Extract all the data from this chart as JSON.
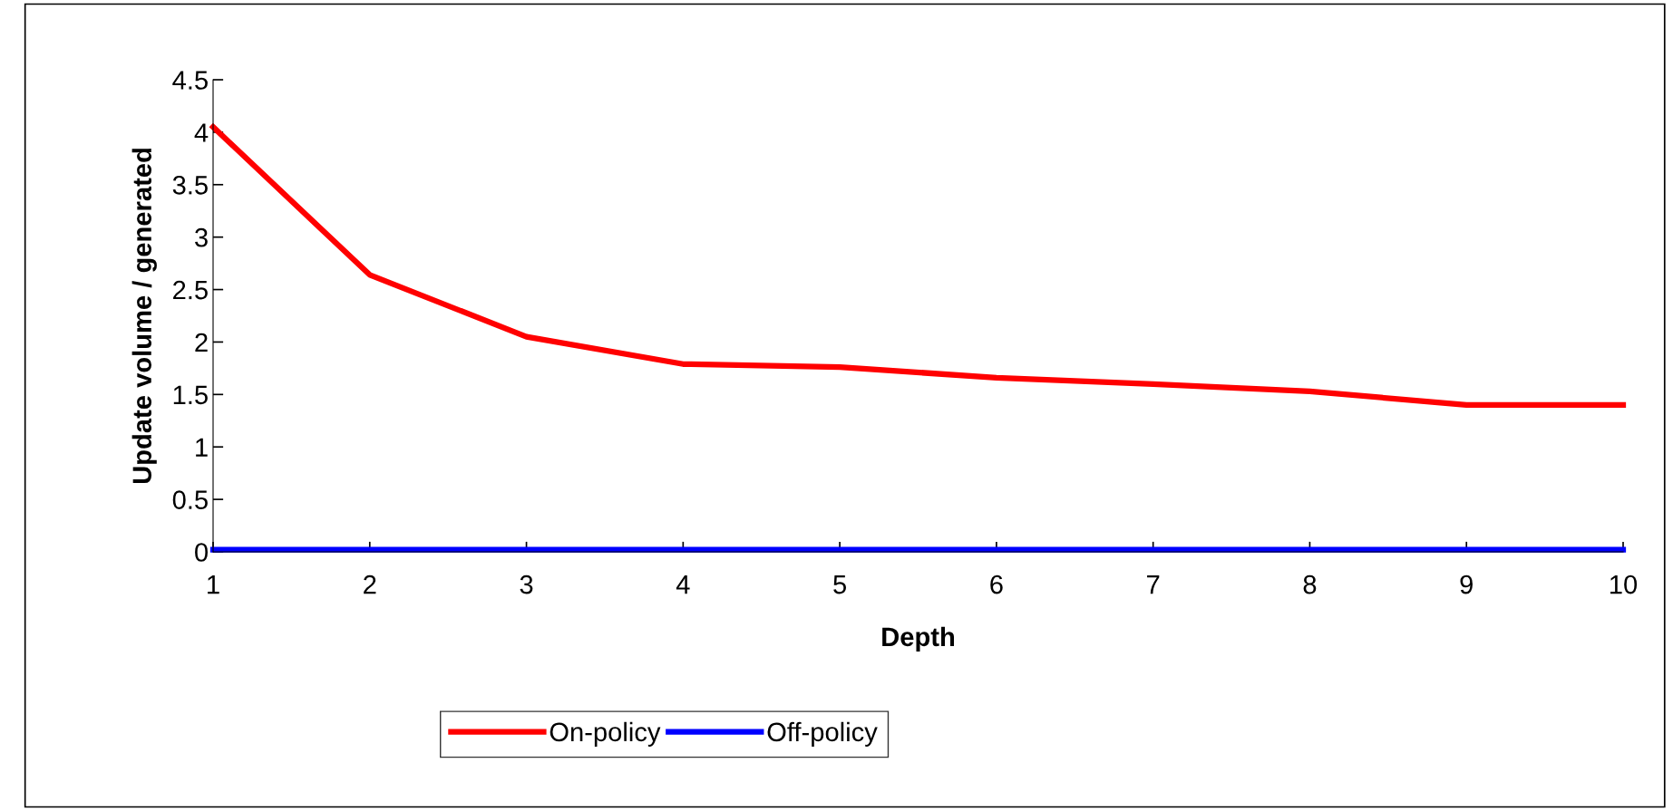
{
  "chart_data": {
    "type": "line",
    "xlabel": "Depth",
    "ylabel": "Update volume / generated",
    "categories": [
      "1",
      "2",
      "3",
      "4",
      "5",
      "6",
      "7",
      "8",
      "9",
      "10"
    ],
    "series": [
      {
        "name": "On-policy",
        "color": "#ff0000",
        "values": [
          4.05,
          2.64,
          2.05,
          1.79,
          1.76,
          1.66,
          1.6,
          1.53,
          1.4,
          1.4
        ]
      },
      {
        "name": "Off-policy",
        "color": "#0000ff",
        "values": [
          0.02,
          0.02,
          0.02,
          0.02,
          0.02,
          0.02,
          0.02,
          0.02,
          0.02,
          0.02
        ]
      }
    ],
    "ylim": [
      0,
      4.5
    ],
    "yticks": [
      0,
      0.5,
      1,
      1.5,
      2,
      2.5,
      3,
      3.5,
      4,
      4.5
    ],
    "grid": false,
    "legend": "bottom",
    "marker": "none",
    "line_style": "solid"
  }
}
